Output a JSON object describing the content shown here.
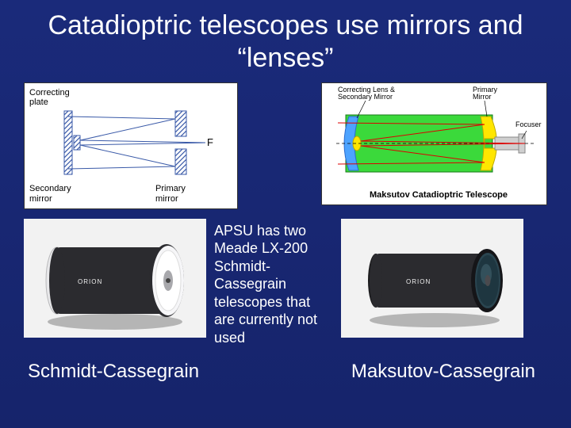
{
  "title": "Catadioptric telescopes use mirrors and “lenses”",
  "diagram_left": {
    "label_top_left": "Correcting\nplate",
    "label_bottom_left": "Secondary\nmirror",
    "label_bottom_right": "Primary\nmirror",
    "label_f": "F",
    "hatch_color": "#3a5aa8",
    "line_color": "#3a5aa8",
    "bg": "#ffffff"
  },
  "diagram_right": {
    "title": "Maksutov Catadioptric Telescope",
    "label_tl": "Correcting Lens &\nSecondary Mirror",
    "label_tr": "Primary\nMirror",
    "label_focuser": "Focuser",
    "body_fill": "#3bd93b",
    "mirror_fill": "#ffe600",
    "lens_fill": "#4da3ff",
    "line_color": "#222222",
    "bg": "#ffffff"
  },
  "middle_text": "APSU has two Meade LX-200 Schmidt-Cassegrain telescopes that are currently not used",
  "photo_left": {
    "bg": "#f2f2f2",
    "body_color": "#2b2b2f",
    "endcap_color": "#e8e8ea",
    "front_face": "#f6f6f8",
    "secondary_disk": "#a8a8ac",
    "brand": "ORION"
  },
  "photo_right": {
    "bg": "#f2f2f2",
    "body_color": "#2b2b2f",
    "lens_bezel": "#151518",
    "lens_glass": "#2a4550",
    "brand": "ORION"
  },
  "caption_left": "Schmidt-Cassegrain",
  "caption_right": "Maksutov-Cassegrain",
  "colors": {
    "slide_bg_top": "#1a2a7a",
    "slide_bg_bottom": "#16246b",
    "text": "#ffffff"
  }
}
